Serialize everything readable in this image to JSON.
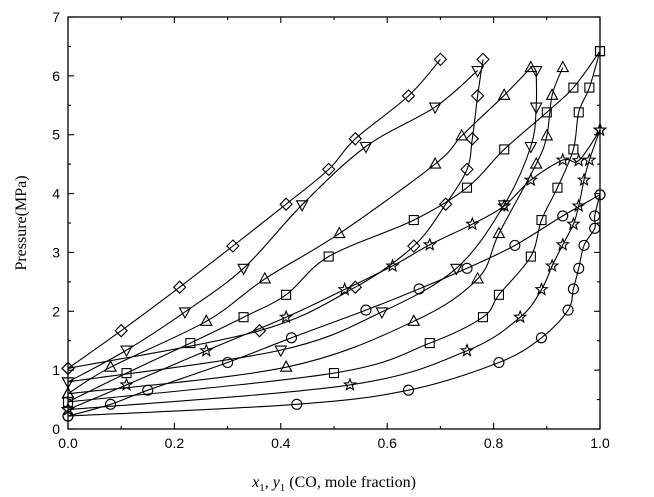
{
  "chart_data": {
    "type": "scatter",
    "title": "",
    "xlabel": "x1, y1 (CO, mole fraction)",
    "xlabel_parts": {
      "x": "x",
      "x_sub": "1",
      "sep": ", ",
      "y": "y",
      "y_sub": "1",
      "rest": " (CO, mole fraction)"
    },
    "ylabel": "Pressure(MPa)",
    "xlim": [
      0.0,
      1.0
    ],
    "ylim": [
      0,
      7
    ],
    "x_ticks": [
      0.0,
      0.2,
      0.4,
      0.6,
      0.8,
      1.0
    ],
    "x_tick_labels": [
      "0.0",
      "0.2",
      "0.4",
      "0.6",
      "0.8",
      "1.0"
    ],
    "y_ticks": [
      0,
      1,
      2,
      3,
      4,
      5,
      6,
      7
    ],
    "y_tick_labels": [
      "0",
      "1",
      "2",
      "3",
      "4",
      "5",
      "6",
      "7"
    ],
    "grid": false,
    "legend": "none",
    "series": [
      {
        "marker": "diamond",
        "bubble": [
          [
            0.0,
            1.03
          ],
          [
            0.1,
            1.67
          ],
          [
            0.21,
            2.41
          ],
          [
            0.31,
            3.11
          ],
          [
            0.41,
            3.82
          ],
          [
            0.49,
            4.41
          ],
          [
            0.54,
            4.93
          ],
          [
            0.64,
            5.66
          ],
          [
            0.7,
            6.28
          ]
        ],
        "dew": [
          [
            0.0,
            1.03
          ],
          [
            0.36,
            1.67
          ],
          [
            0.54,
            2.41
          ],
          [
            0.65,
            3.11
          ],
          [
            0.71,
            3.82
          ],
          [
            0.75,
            4.41
          ],
          [
            0.76,
            4.93
          ],
          [
            0.77,
            5.66
          ],
          [
            0.78,
            6.28
          ]
        ]
      },
      {
        "marker": "triangle-down",
        "bubble": [
          [
            0.0,
            0.8
          ],
          [
            0.11,
            1.34
          ],
          [
            0.22,
            1.99
          ],
          [
            0.33,
            2.73
          ],
          [
            0.44,
            3.81
          ],
          [
            0.56,
            4.8
          ],
          [
            0.69,
            5.47
          ],
          [
            0.77,
            6.09
          ]
        ],
        "dew": [
          [
            0.0,
            0.8
          ],
          [
            0.4,
            1.34
          ],
          [
            0.59,
            1.99
          ],
          [
            0.73,
            2.73
          ],
          [
            0.82,
            3.81
          ],
          [
            0.87,
            4.8
          ],
          [
            0.88,
            5.47
          ],
          [
            0.88,
            6.09
          ]
        ]
      },
      {
        "marker": "triangle-up",
        "bubble": [
          [
            0.0,
            0.6
          ],
          [
            0.08,
            1.05
          ],
          [
            0.26,
            1.83
          ],
          [
            0.37,
            2.55
          ],
          [
            0.51,
            3.32
          ],
          [
            0.69,
            4.5
          ],
          [
            0.74,
            4.98
          ],
          [
            0.82,
            5.67
          ],
          [
            0.87,
            6.14
          ]
        ],
        "dew": [
          [
            0.0,
            0.6
          ],
          [
            0.41,
            1.05
          ],
          [
            0.65,
            1.83
          ],
          [
            0.77,
            2.55
          ],
          [
            0.81,
            3.32
          ],
          [
            0.88,
            4.5
          ],
          [
            0.9,
            4.98
          ],
          [
            0.91,
            5.67
          ],
          [
            0.93,
            6.14
          ]
        ]
      },
      {
        "marker": "square",
        "bubble": [
          [
            0.0,
            0.46
          ],
          [
            0.11,
            0.95
          ],
          [
            0.23,
            1.46
          ],
          [
            0.33,
            1.9
          ],
          [
            0.41,
            2.28
          ],
          [
            0.49,
            2.93
          ],
          [
            0.65,
            3.55
          ],
          [
            0.75,
            4.1
          ],
          [
            0.82,
            4.75
          ],
          [
            0.9,
            5.38
          ],
          [
            0.95,
            5.8
          ],
          [
            1.0,
            6.42
          ]
        ],
        "dew": [
          [
            0.0,
            0.46
          ],
          [
            0.5,
            0.95
          ],
          [
            0.68,
            1.46
          ],
          [
            0.78,
            1.9
          ],
          [
            0.81,
            2.28
          ],
          [
            0.87,
            2.93
          ],
          [
            0.89,
            3.55
          ],
          [
            0.92,
            4.1
          ],
          [
            0.95,
            4.75
          ],
          [
            0.96,
            5.38
          ],
          [
            0.98,
            5.8
          ],
          [
            1.0,
            6.42
          ]
        ]
      },
      {
        "marker": "star",
        "bubble": [
          [
            0.0,
            0.33
          ],
          [
            0.11,
            0.75
          ],
          [
            0.26,
            1.33
          ],
          [
            0.41,
            1.9
          ],
          [
            0.52,
            2.37
          ],
          [
            0.61,
            2.77
          ],
          [
            0.68,
            3.13
          ],
          [
            0.76,
            3.48
          ],
          [
            0.82,
            3.79
          ],
          [
            0.87,
            4.23
          ],
          [
            0.93,
            4.57
          ],
          [
            0.96,
            4.56
          ],
          [
            1.0,
            5.08
          ]
        ],
        "dew": [
          [
            0.0,
            0.33
          ],
          [
            0.53,
            0.75
          ],
          [
            0.75,
            1.33
          ],
          [
            0.85,
            1.9
          ],
          [
            0.89,
            2.37
          ],
          [
            0.91,
            2.77
          ],
          [
            0.93,
            3.13
          ],
          [
            0.95,
            3.48
          ],
          [
            0.96,
            3.79
          ],
          [
            0.97,
            4.23
          ],
          [
            0.98,
            4.57
          ],
          [
            1.0,
            5.08
          ]
        ]
      },
      {
        "marker": "circle",
        "bubble": [
          [
            0.0,
            0.22
          ],
          [
            0.08,
            0.42
          ],
          [
            0.15,
            0.66
          ],
          [
            0.3,
            1.13
          ],
          [
            0.42,
            1.55
          ],
          [
            0.56,
            2.02
          ],
          [
            0.66,
            2.38
          ],
          [
            0.75,
            2.73
          ],
          [
            0.84,
            3.12
          ],
          [
            0.93,
            3.62
          ],
          [
            1.0,
            3.98
          ]
        ],
        "dew": [
          [
            0.0,
            0.22
          ],
          [
            0.43,
            0.42
          ],
          [
            0.64,
            0.66
          ],
          [
            0.81,
            1.13
          ],
          [
            0.89,
            1.55
          ],
          [
            0.94,
            2.02
          ],
          [
            0.95,
            2.38
          ],
          [
            0.96,
            2.73
          ],
          [
            0.97,
            3.12
          ],
          [
            0.99,
            3.41
          ],
          [
            0.99,
            3.62
          ],
          [
            1.0,
            3.98
          ]
        ]
      }
    ]
  }
}
